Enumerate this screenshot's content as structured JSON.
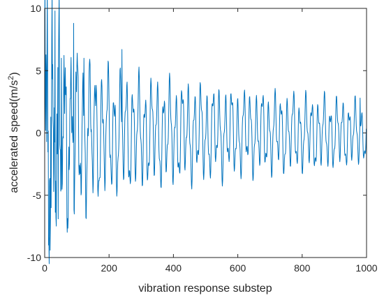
{
  "chart_data": {
    "type": "line",
    "title": "",
    "xlabel": "vibration response substep",
    "ylabel_main": "accelerated speed(m/s",
    "ylabel_sup": "2",
    "ylabel_close": ")",
    "xlim": [
      0,
      1000
    ],
    "ylim": [
      -10,
      10
    ],
    "xticks": [
      0,
      200,
      400,
      600,
      800,
      1000
    ],
    "yticks": [
      -10,
      -5,
      0,
      5,
      10
    ],
    "xtick_labels": [
      "0",
      "200",
      "400",
      "600",
      "800",
      "1000"
    ],
    "ytick_labels": [
      "-10",
      "-5",
      "0",
      "5",
      "10"
    ],
    "grid": false,
    "line_color": "#0072BD",
    "axis_color": "#262626",
    "series": [
      {
        "dominant_period_steps": 19.2,
        "secondary_period_steps": 48,
        "peaks": [
          {
            "x": 12,
            "y": -9.0
          },
          {
            "x": 20,
            "y": -6.0
          },
          {
            "x": 25,
            "y": 5.5
          },
          {
            "x": 32,
            "y": 9.8
          },
          {
            "x": 42,
            "y": -6.9
          },
          {
            "x": 52,
            "y": 6.0
          },
          {
            "x": 90,
            "y": 8.8
          },
          {
            "x": 122,
            "y": 6.0
          },
          {
            "x": 240,
            "y": 6.7
          },
          {
            "x": 980,
            "y": 2.8
          }
        ],
        "envelope": [
          {
            "x": 0,
            "y": 9.8
          },
          {
            "x": 100,
            "y": 7.5
          },
          {
            "x": 200,
            "y": 6.0
          },
          {
            "x": 300,
            "y": 5.3
          },
          {
            "x": 400,
            "y": 4.9
          },
          {
            "x": 500,
            "y": 4.5
          },
          {
            "x": 600,
            "y": 4.1
          },
          {
            "x": 700,
            "y": 3.9
          },
          {
            "x": 800,
            "y": 3.7
          },
          {
            "x": 900,
            "y": 3.4
          },
          {
            "x": 1000,
            "y": 2.9
          }
        ],
        "end_value": -1.9
      }
    ]
  }
}
